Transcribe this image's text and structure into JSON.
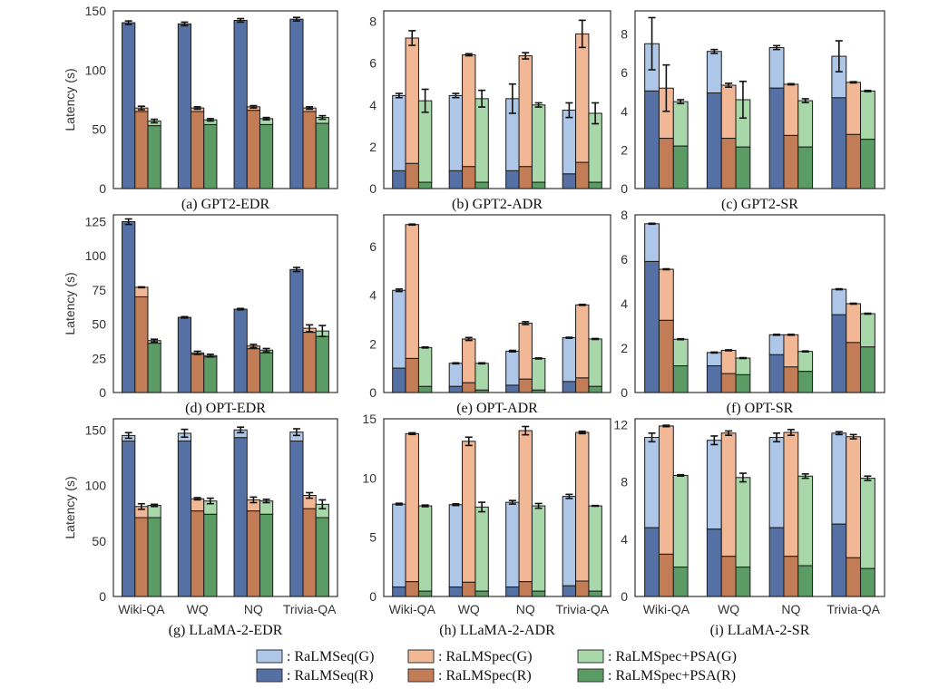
{
  "legend": {
    "entries": [
      {
        "key": "seq_g",
        "label": ": RaLMSeq(G)"
      },
      {
        "key": "spec_g",
        "label": ": RaLMSpec(G)"
      },
      {
        "key": "psa_g",
        "label": ": RaLMSpec+PSA(G)"
      },
      {
        "key": "seq_r",
        "label": ": RaLMSeq(R)"
      },
      {
        "key": "spec_r",
        "label": ": RaLMSpec(R)"
      },
      {
        "key": "psa_r",
        "label": ": RaLMSpec+PSA(R)"
      }
    ]
  },
  "colors": {
    "seq_g": "#aec6e8",
    "seq_r": "#5470a4",
    "spec_g": "#f2b896",
    "spec_r": "#c27c56",
    "psa_g": "#a8d8a9",
    "psa_r": "#5a9c64",
    "edge": "#1a1a1a",
    "frame": "#333333"
  },
  "chart_data": [
    {
      "type": "bar",
      "stacked": true,
      "caption": "(a) GPT2-EDR",
      "ylabel": "Latency (s)",
      "ylim": [
        0,
        150
      ],
      "yticks": [
        0,
        50,
        100,
        150
      ],
      "categories": [
        "Wiki-QA",
        "WQ",
        "NQ",
        "Trivia-QA"
      ],
      "show_xticks": false,
      "series": [
        {
          "key": "seq",
          "total": [
            140,
            139,
            142,
            143
          ],
          "retrieval": [
            140,
            139,
            142,
            143
          ],
          "err": [
            1.5,
            1.5,
            1.5,
            1.5
          ]
        },
        {
          "key": "spec",
          "total": [
            68,
            68,
            69,
            68
          ],
          "retrieval": [
            65,
            65,
            66,
            65
          ],
          "err": [
            1.5,
            1,
            1,
            1
          ]
        },
        {
          "key": "psa",
          "total": [
            57,
            58,
            59,
            60
          ],
          "retrieval": [
            53,
            54,
            54,
            55
          ],
          "err": [
            1.5,
            1,
            1,
            1.5
          ]
        }
      ]
    },
    {
      "type": "bar",
      "stacked": true,
      "caption": "(b) GPT2-ADR",
      "ylabel": "",
      "ylim": [
        0,
        8.5
      ],
      "yticks": [
        0,
        2,
        4,
        6,
        8
      ],
      "categories": [
        "Wiki-QA",
        "WQ",
        "NQ",
        "Trivia-QA"
      ],
      "show_xticks": false,
      "series": [
        {
          "key": "seq",
          "total": [
            4.45,
            4.45,
            4.3,
            3.75
          ],
          "retrieval": [
            0.85,
            0.85,
            0.85,
            0.7
          ],
          "err": [
            0.1,
            0.1,
            0.7,
            0.35
          ]
        },
        {
          "key": "spec",
          "total": [
            7.2,
            6.4,
            6.35,
            7.4
          ],
          "retrieval": [
            1.2,
            1.05,
            1.05,
            1.25
          ],
          "err": [
            0.35,
            0.05,
            0.15,
            0.65
          ]
        },
        {
          "key": "psa",
          "total": [
            4.2,
            4.3,
            4.0,
            3.6
          ],
          "retrieval": [
            0.3,
            0.3,
            0.3,
            0.3
          ],
          "err": [
            0.55,
            0.4,
            0.1,
            0.5
          ]
        }
      ]
    },
    {
      "type": "bar",
      "stacked": true,
      "caption": "(c) GPT2-SR",
      "ylabel": "",
      "ylim": [
        0,
        9.2
      ],
      "yticks": [
        0,
        2,
        4,
        6,
        8
      ],
      "categories": [
        "Wiki-QA",
        "WQ",
        "NQ",
        "Trivia-QA"
      ],
      "show_xticks": false,
      "series": [
        {
          "key": "seq",
          "total": [
            7.5,
            7.1,
            7.3,
            6.85
          ],
          "retrieval": [
            5.05,
            4.95,
            5.2,
            4.7
          ],
          "err": [
            1.35,
            0.1,
            0.1,
            0.8
          ]
        },
        {
          "key": "spec",
          "total": [
            5.2,
            5.35,
            5.4,
            5.5
          ],
          "retrieval": [
            2.6,
            2.6,
            2.75,
            2.8
          ],
          "err": [
            1.2,
            0.1,
            0.03,
            0.03
          ]
        },
        {
          "key": "psa",
          "total": [
            4.5,
            4.6,
            4.55,
            5.05
          ],
          "retrieval": [
            2.2,
            2.15,
            2.15,
            2.55
          ],
          "err": [
            0.1,
            0.95,
            0.1,
            0.03
          ]
        }
      ]
    },
    {
      "type": "bar",
      "stacked": true,
      "caption": "(d) OPT-EDR",
      "ylabel": "Latency (s)",
      "ylim": [
        0,
        130
      ],
      "yticks": [
        0,
        25,
        50,
        75,
        100,
        125
      ],
      "categories": [
        "Wiki-QA",
        "WQ",
        "NQ",
        "Trivia-QA"
      ],
      "show_xticks": false,
      "series": [
        {
          "key": "seq",
          "total": [
            125,
            55,
            61,
            90
          ],
          "retrieval": [
            125,
            55,
            61,
            90
          ],
          "err": [
            2,
            0.5,
            0.5,
            1.5
          ]
        },
        {
          "key": "spec",
          "total": [
            77,
            29,
            34,
            47
          ],
          "retrieval": [
            70,
            28,
            32,
            44
          ],
          "err": [
            0.3,
            1.2,
            1.2,
            2.5
          ]
        },
        {
          "key": "psa",
          "total": [
            38,
            27,
            31,
            45
          ],
          "retrieval": [
            36,
            26,
            29,
            41
          ],
          "err": [
            1,
            1,
            1.2,
            4
          ]
        }
      ]
    },
    {
      "type": "bar",
      "stacked": true,
      "caption": "(e) OPT-ADR",
      "ylabel": "",
      "ylim": [
        0,
        7.3
      ],
      "yticks": [
        0,
        2,
        4,
        6
      ],
      "categories": [
        "Wiki-QA",
        "WQ",
        "NQ",
        "Trivia-QA"
      ],
      "show_xticks": false,
      "series": [
        {
          "key": "seq",
          "total": [
            4.2,
            1.2,
            1.7,
            2.25
          ],
          "retrieval": [
            1.0,
            0.25,
            0.3,
            0.45
          ],
          "err": [
            0.05,
            0.02,
            0.03,
            0.02
          ]
        },
        {
          "key": "spec",
          "total": [
            6.9,
            2.2,
            2.85,
            3.6
          ],
          "retrieval": [
            1.4,
            0.4,
            0.55,
            0.6
          ],
          "err": [
            0.02,
            0.06,
            0.06,
            0.02
          ]
        },
        {
          "key": "psa",
          "total": [
            1.85,
            1.2,
            1.4,
            2.2
          ],
          "retrieval": [
            0.25,
            0.1,
            0.1,
            0.25
          ],
          "err": [
            0.02,
            0.02,
            0.02,
            0.02
          ]
        }
      ]
    },
    {
      "type": "bar",
      "stacked": true,
      "caption": "(f) OPT-SR",
      "ylabel": "",
      "ylim": [
        0,
        8
      ],
      "yticks": [
        0,
        2,
        4,
        6,
        8
      ],
      "categories": [
        "Wiki-QA",
        "WQ",
        "NQ",
        "Trivia-QA"
      ],
      "show_xticks": false,
      "series": [
        {
          "key": "seq",
          "total": [
            7.6,
            1.8,
            2.6,
            4.65
          ],
          "retrieval": [
            5.9,
            1.2,
            1.7,
            3.5
          ],
          "err": [
            0.02,
            0.02,
            0.02,
            0.02
          ]
        },
        {
          "key": "spec",
          "total": [
            5.55,
            1.9,
            2.6,
            4.0
          ],
          "retrieval": [
            3.25,
            0.85,
            1.15,
            2.25
          ],
          "err": [
            0.02,
            0.02,
            0.02,
            0.02
          ]
        },
        {
          "key": "psa",
          "total": [
            2.4,
            1.55,
            1.85,
            3.55
          ],
          "retrieval": [
            1.2,
            0.8,
            0.95,
            2.05
          ],
          "err": [
            0.02,
            0.02,
            0.02,
            0.02
          ]
        }
      ]
    },
    {
      "type": "bar",
      "stacked": true,
      "caption": "(g) LLaMA-2-EDR",
      "ylabel": "Latency (s)",
      "ylim": [
        0,
        160
      ],
      "yticks": [
        0,
        50,
        100,
        150
      ],
      "categories": [
        "Wiki-QA",
        "WQ",
        "NQ",
        "Trivia-QA"
      ],
      "show_xticks": true,
      "series": [
        {
          "key": "seq",
          "total": [
            145,
            147,
            150,
            148
          ],
          "retrieval": [
            140,
            140,
            143,
            140
          ],
          "err": [
            2.5,
            3.5,
            2.5,
            3
          ]
        },
        {
          "key": "spec",
          "total": [
            81,
            88,
            87,
            91
          ],
          "retrieval": [
            71,
            77,
            77,
            79
          ],
          "err": [
            2.5,
            1,
            2.5,
            2.5
          ]
        },
        {
          "key": "psa",
          "total": [
            82,
            86,
            86,
            83
          ],
          "retrieval": [
            71,
            74,
            74,
            71
          ],
          "err": [
            1,
            2.5,
            1.5,
            4
          ]
        }
      ]
    },
    {
      "type": "bar",
      "stacked": true,
      "caption": "(h) LLaMA-2-ADR",
      "ylabel": "",
      "ylim": [
        0,
        15
      ],
      "yticks": [
        0,
        5,
        10,
        15
      ],
      "categories": [
        "Wiki-QA",
        "WQ",
        "NQ",
        "Trivia-QA"
      ],
      "show_xticks": true,
      "series": [
        {
          "key": "seq",
          "total": [
            7.8,
            7.75,
            7.95,
            8.45
          ],
          "retrieval": [
            0.8,
            0.8,
            0.8,
            0.9
          ],
          "err": [
            0.07,
            0.07,
            0.15,
            0.17
          ]
        },
        {
          "key": "spec",
          "total": [
            13.75,
            13.1,
            14.0,
            13.85
          ],
          "retrieval": [
            1.25,
            1.2,
            1.25,
            1.3
          ],
          "err": [
            0.07,
            0.35,
            0.35,
            0.1
          ]
        },
        {
          "key": "psa",
          "total": [
            7.65,
            7.55,
            7.65,
            7.65
          ],
          "retrieval": [
            0.45,
            0.45,
            0.45,
            0.45
          ],
          "err": [
            0.07,
            0.4,
            0.2,
            0.03
          ]
        }
      ]
    },
    {
      "type": "bar",
      "stacked": true,
      "caption": "(i) LLaMA-2-SR",
      "ylabel": "",
      "ylim": [
        0,
        12.4
      ],
      "yticks": [
        0,
        4,
        8,
        12
      ],
      "categories": [
        "Wiki-QA",
        "WQ",
        "NQ",
        "Trivia-QA"
      ],
      "show_xticks": true,
      "series": [
        {
          "key": "seq",
          "total": [
            11.1,
            10.9,
            11.1,
            11.4
          ],
          "retrieval": [
            4.8,
            4.7,
            4.8,
            5.05
          ],
          "err": [
            0.3,
            0.3,
            0.3,
            0.1
          ]
        },
        {
          "key": "spec",
          "total": [
            11.9,
            11.4,
            11.45,
            11.15
          ],
          "retrieval": [
            2.95,
            2.8,
            2.8,
            2.7
          ],
          "err": [
            0.05,
            0.15,
            0.2,
            0.15
          ]
        },
        {
          "key": "psa",
          "total": [
            8.45,
            8.3,
            8.4,
            8.25
          ],
          "retrieval": [
            2.05,
            2.05,
            2.15,
            1.95
          ],
          "err": [
            0.05,
            0.3,
            0.15,
            0.15
          ]
        }
      ]
    }
  ]
}
